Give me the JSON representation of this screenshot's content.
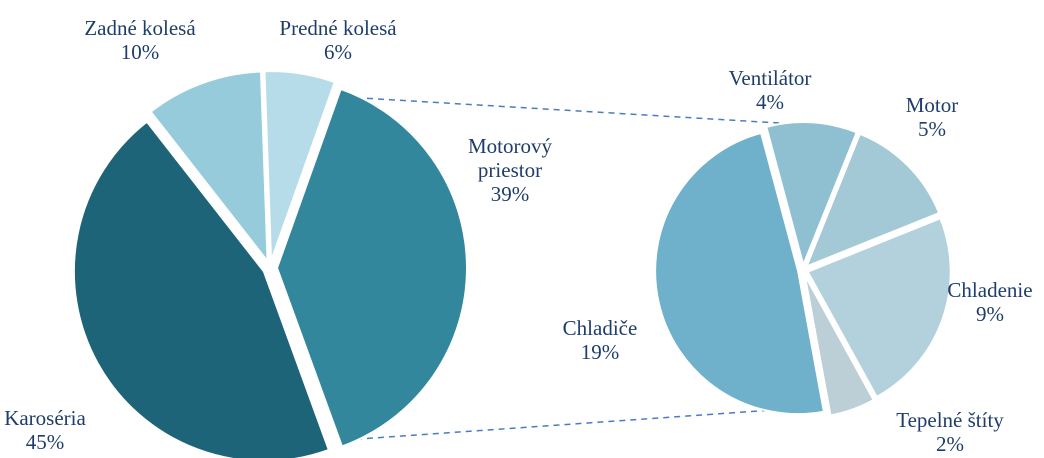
{
  "chart_data": [
    {
      "type": "pie",
      "categories": [
        "Karoséria",
        "Zadné kolesá",
        "Predné kolesá",
        "Motorový priestor"
      ],
      "values": [
        45,
        10,
        6,
        39
      ],
      "value_labels": [
        "45%",
        "10%",
        "6%",
        "39%"
      ],
      "colors": [
        "#1d6478",
        "#96cbdc",
        "#b5dce8",
        "#33879c"
      ]
    },
    {
      "type": "pie",
      "categories": [
        "Ventilátor",
        "Motor",
        "Chladenie",
        "Tepelné štíty",
        "Chladiče"
      ],
      "values": [
        4,
        5,
        9,
        2,
        19
      ],
      "value_labels": [
        "4%",
        "5%",
        "9%",
        "2%",
        "19%"
      ],
      "colors": [
        "#8fc0d2",
        "#a3c9d6",
        "#b2d1dd",
        "#bccfd7",
        "#6fb0cb"
      ]
    }
  ]
}
